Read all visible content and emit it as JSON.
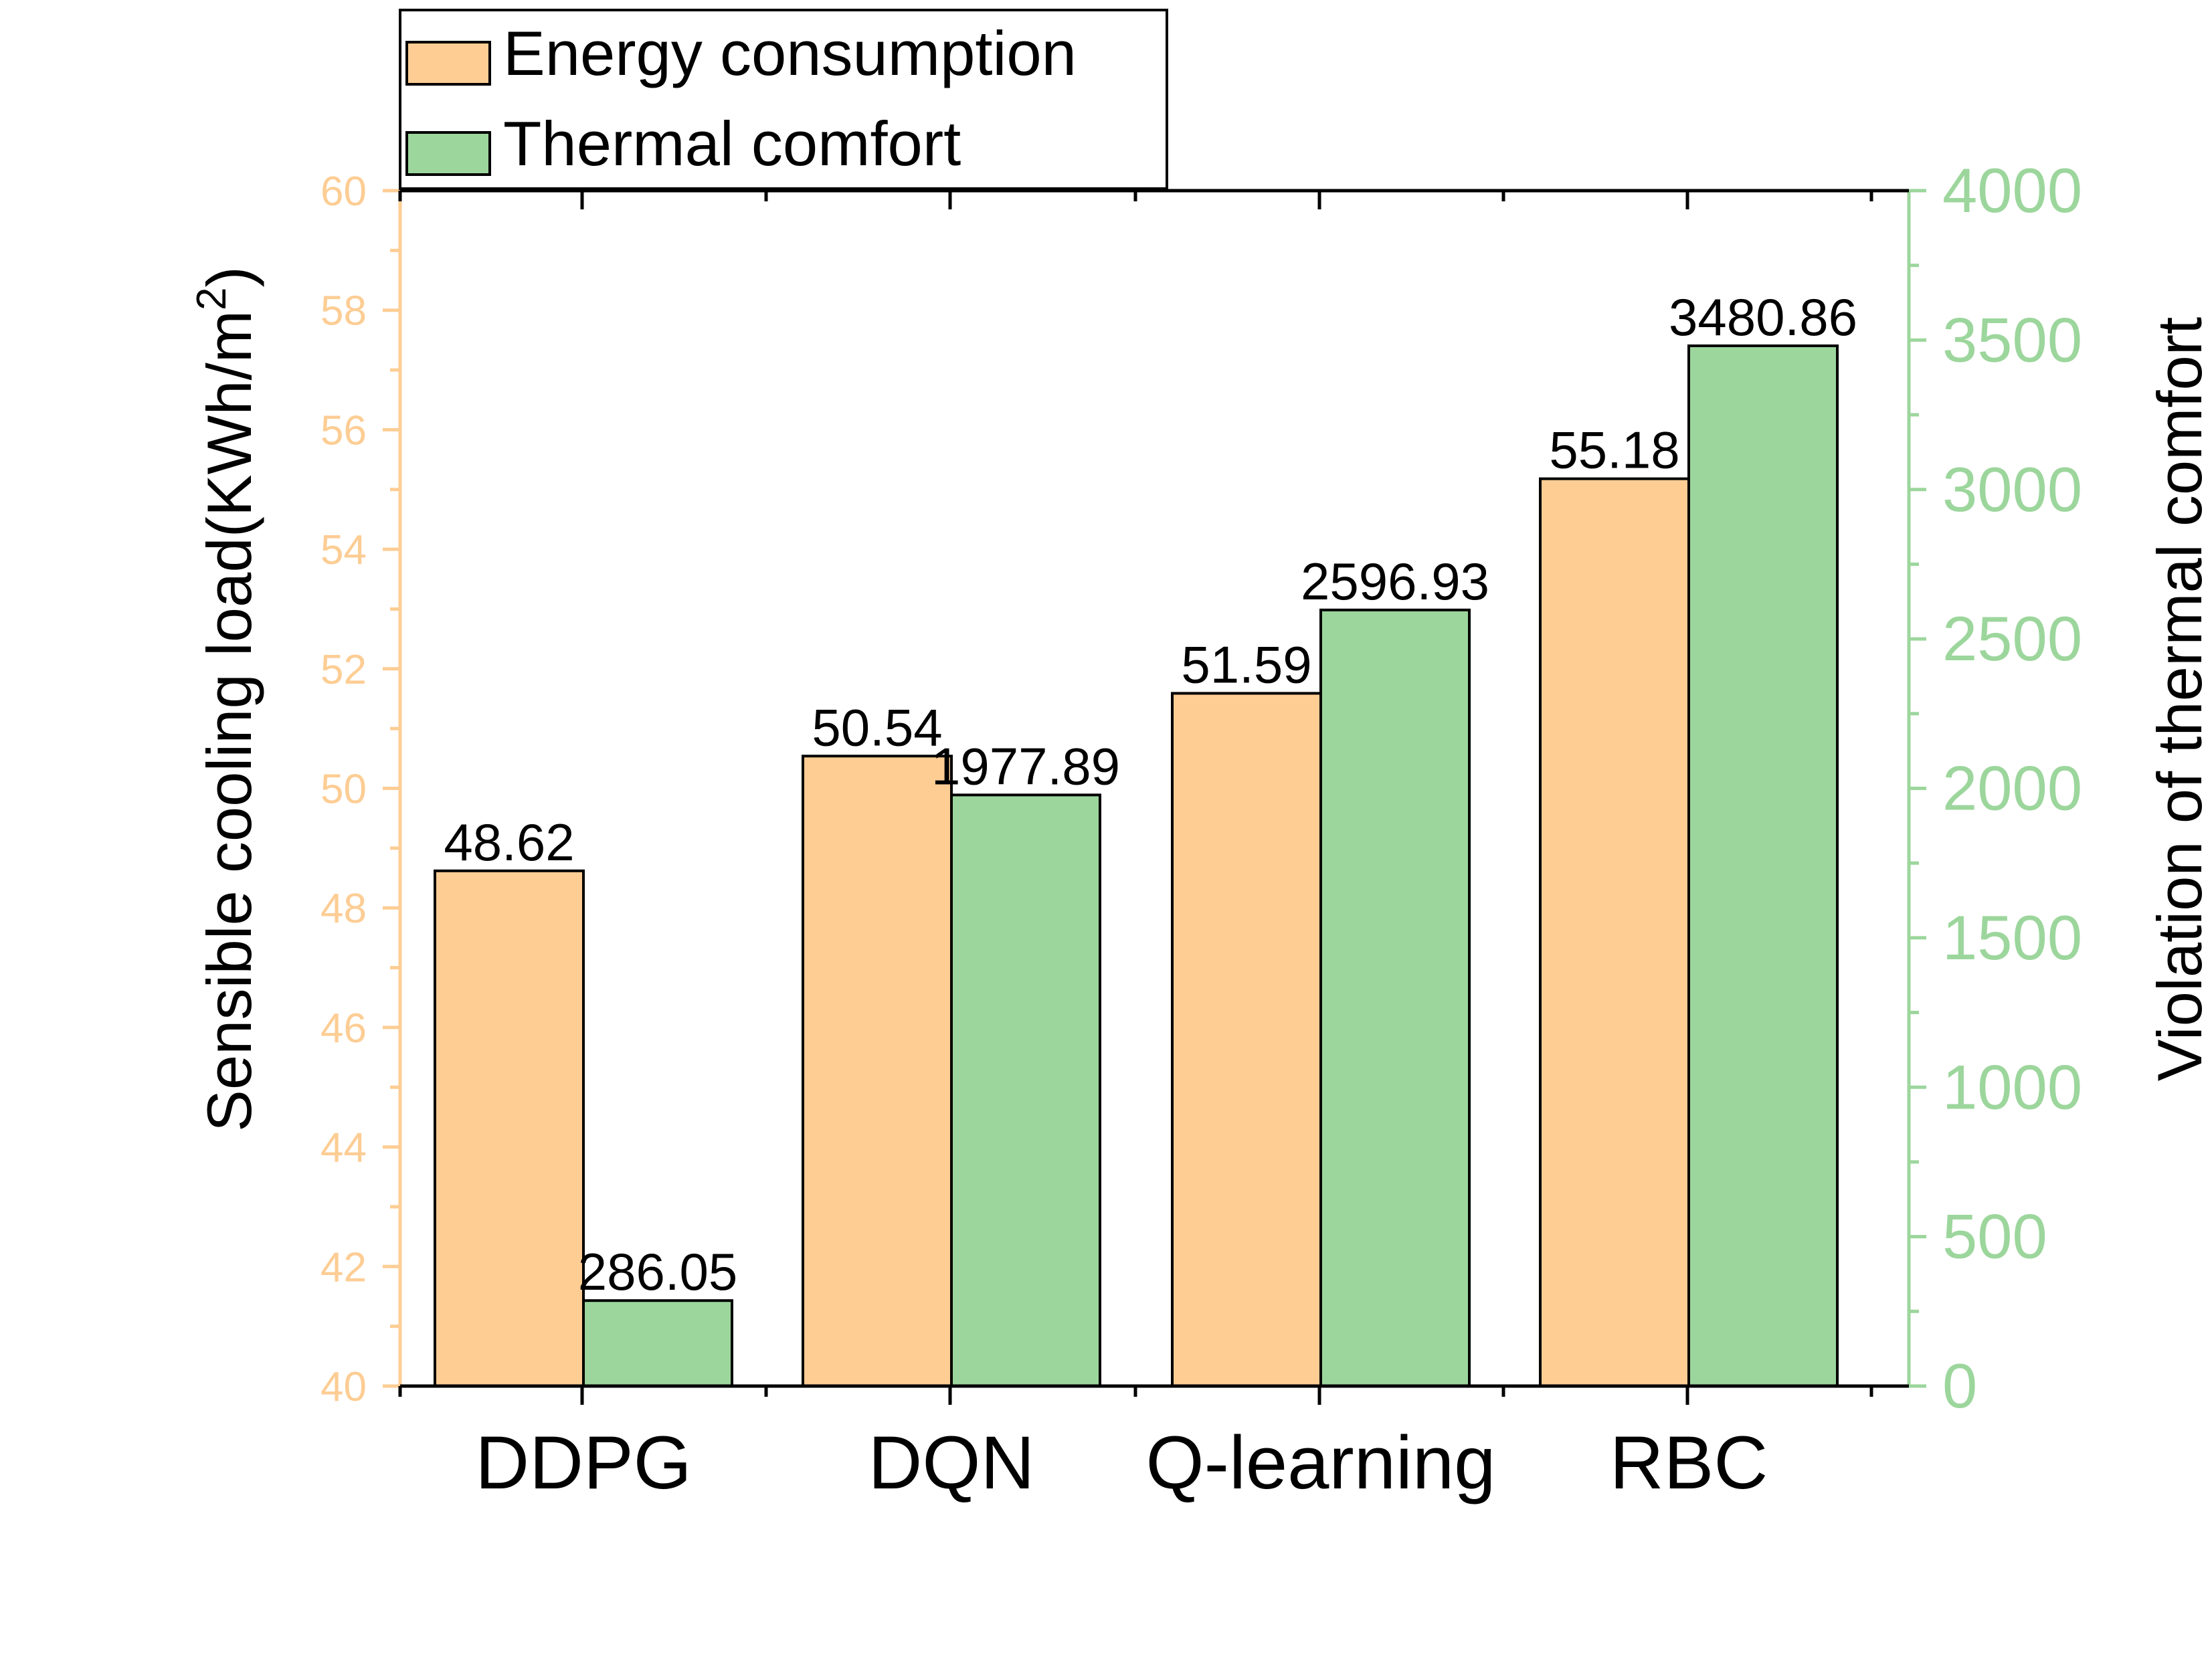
{
  "chart_data": {
    "type": "bar",
    "categories": [
      "DDPG",
      "DQN",
      "Q-learning",
      "RBC"
    ],
    "series": [
      {
        "name": "Energy consumption",
        "axis": "left",
        "color": "#FDCD94",
        "values": [
          48.62,
          50.54,
          51.59,
          55.18
        ],
        "labels": [
          "48.62",
          "50.54",
          "51.59",
          "55.18"
        ]
      },
      {
        "name": "Thermal comfort",
        "axis": "right",
        "color": "#9CD69C",
        "values": [
          286.05,
          1977.89,
          2596.93,
          3480.86
        ],
        "labels": [
          "286.05",
          "1977.89",
          "2596.93",
          "3480.86"
        ]
      }
    ],
    "ylabel": "Sensible cooling load(KWh/m",
    "ylabel_superscript": "2",
    "ylabel_close": ")",
    "y2label": "Violation of thermal comfort",
    "ylim": [
      40,
      60
    ],
    "y2lim": [
      0,
      4000
    ],
    "yticks": [
      "40",
      "42",
      "44",
      "46",
      "48",
      "50",
      "52",
      "54",
      "56",
      "58",
      "60"
    ],
    "y2ticks": [
      "0",
      "500",
      "1000",
      "1500",
      "2000",
      "2500",
      "3000",
      "3500",
      "4000"
    ],
    "left_axis_color": "#FDCD94",
    "right_axis_color": "#9CD69C",
    "legend_position": "top-left",
    "grid": false
  }
}
